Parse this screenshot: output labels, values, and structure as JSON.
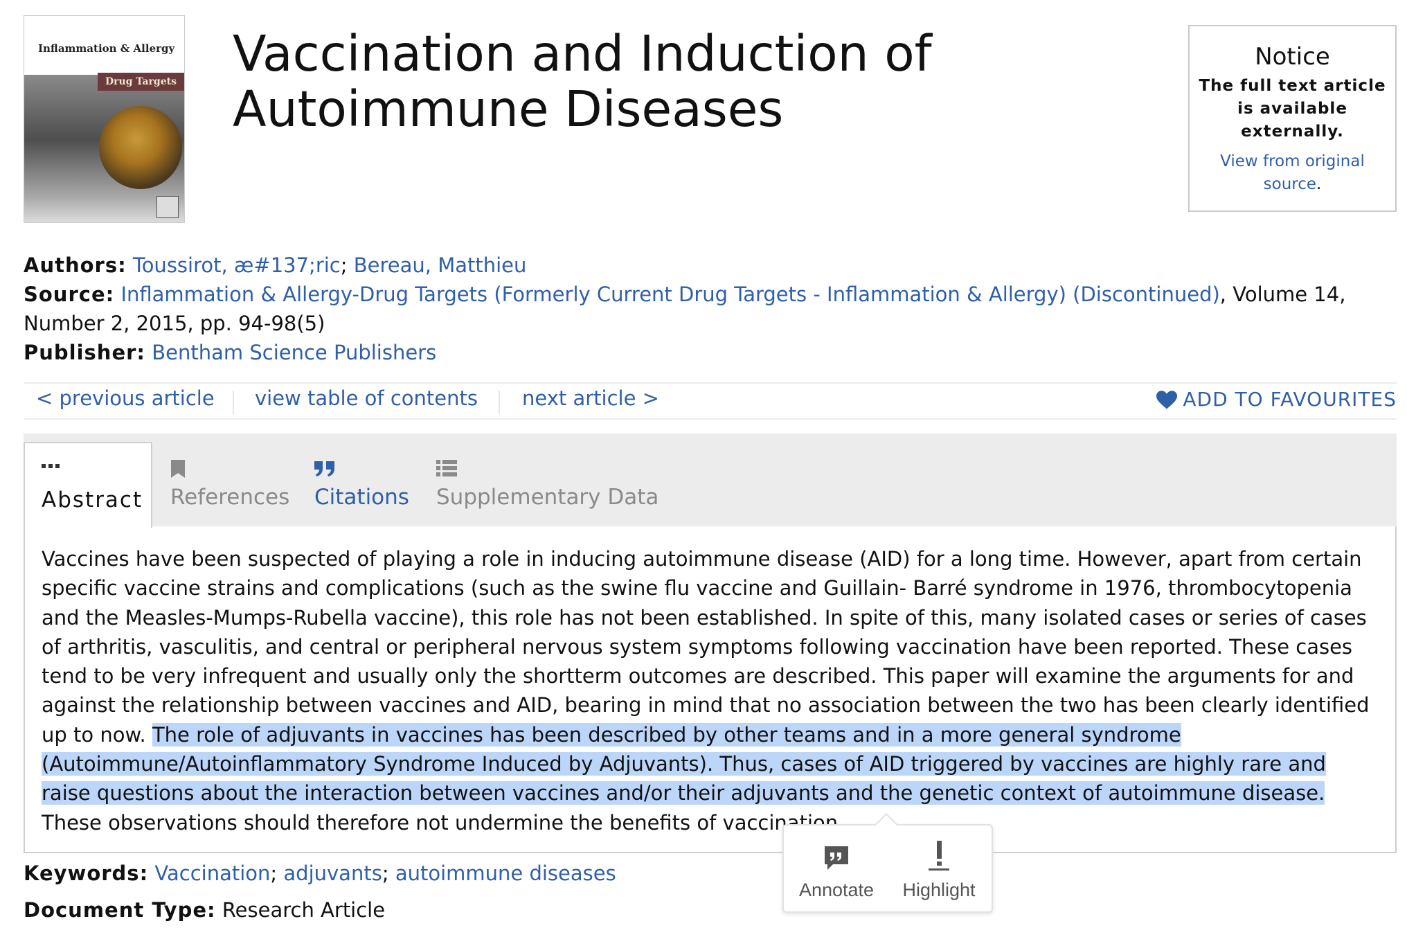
{
  "journal_cover": {
    "title_line1": "Inflammation & Allergy",
    "title_line2": "Drug Targets"
  },
  "article": {
    "title": "Vaccination and Induction of Autoimmune Diseases"
  },
  "notice": {
    "heading": "Notice",
    "body": "The full text article is available externally.",
    "link_text": "View from original source",
    "link_suffix": "."
  },
  "meta": {
    "authors_label": "Authors:",
    "authors": [
      "Toussirot, æ#137;ric",
      "Bereau, Matthieu"
    ],
    "author_sep": "; ",
    "source_label": "Source:",
    "source_link": "Inflammation & Allergy-Drug Targets (Formerly Current Drug Targets - Inflammation & Allergy) (Discontinued)",
    "source_details": ", Volume 14, Number 2, 2015, pp. 94-98(5)",
    "publisher_label": "Publisher:",
    "publisher": "Bentham Science Publishers"
  },
  "nav": {
    "prev": "< previous article",
    "toc": "view table of contents",
    "next": "next article >",
    "favourites": "ADD TO FAVOURITES"
  },
  "tabs": [
    {
      "label": "Abstract",
      "icon": "ellipsis-icon",
      "state": "active"
    },
    {
      "label": "References",
      "icon": "bookmark-icon",
      "state": "disabled"
    },
    {
      "label": "Citations",
      "icon": "quote-icon",
      "state": "link"
    },
    {
      "label": "Supplementary Data",
      "icon": "list-icon",
      "state": "disabled"
    }
  ],
  "abstract": {
    "before": "Vaccines have been suspected of playing a role in inducing autoimmune disease (AID) for a long time. However, apart from certain specific vaccine strains and complications (such as the swine flu vaccine and Guillain- Barré syndrome in 1976, thrombocytopenia and the Measles-Mumps-Rubella vaccine), this role has not been established. In spite of this, many isolated cases or series of cases of arthritis, vasculitis, and central or peripheral nervous system symptoms following vaccination have been reported. These cases tend to be very infrequent and usually only the shortterm outcomes are described. This paper will examine the arguments for and against the relationship between vaccines and AID, bearing in mind that no association between the two has been clearly identified up to now. ",
    "highlighted": "The role of adjuvants in vaccines has been described by other teams and in a more general syndrome (Autoimmune/Autoinflammatory Syndrome Induced by Adjuvants). Thus, cases of AID triggered by vaccines are highly rare and raise questions about the interaction between vaccines and/or their adjuvants and the genetic context of autoimmune disease.",
    "after": " These observations should therefore not undermine the benefits of vaccination."
  },
  "popup": {
    "annotate": "Annotate",
    "highlight": "Highlight"
  },
  "keywords": {
    "label": "Keywords:",
    "items": [
      "Vaccination",
      "adjuvants",
      "autoimmune diseases"
    ],
    "sep": "; "
  },
  "document_type": {
    "label": "Document Type:",
    "value": "Research Article"
  },
  "colors": {
    "link": "#2f5fa8",
    "highlight": "#bcd6fa",
    "tab_bg": "#ececec"
  }
}
